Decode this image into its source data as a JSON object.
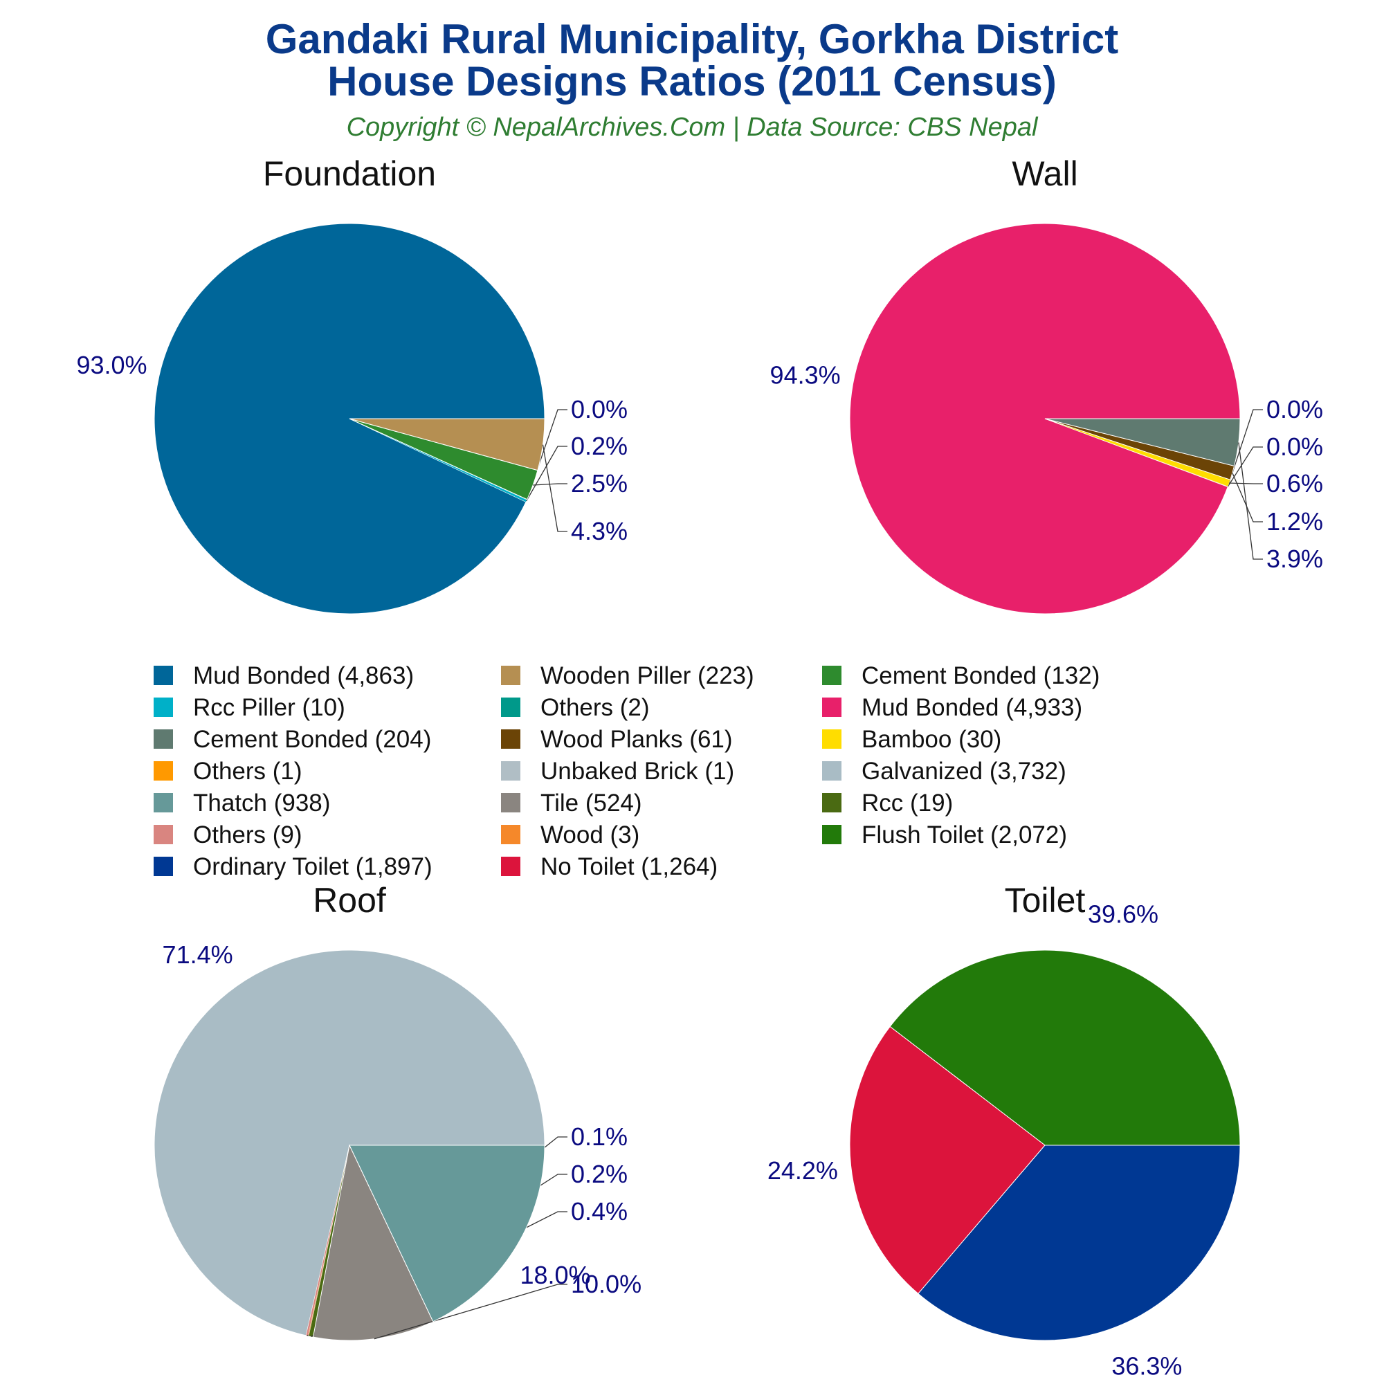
{
  "header": {
    "title_line1": "Gandaki Rural Municipality, Gorkha District",
    "title_line2": "House Designs Ratios (2011 Census)",
    "subtitle": "Copyright © NepalArchives.Com | Data Source: CBS Nepal"
  },
  "chart_data": [
    {
      "type": "pie",
      "title": "Foundation",
      "slices": [
        {
          "label": "Mud Bonded",
          "value": 4863,
          "percent_label": "93.0%",
          "color": "#006699"
        },
        {
          "label": "Rcc Piller",
          "value": 10,
          "percent_label": "0.2%",
          "color": "#00b0c8"
        },
        {
          "label": "Others",
          "value": 2,
          "percent_label": "0.0%",
          "color": "#00998a"
        },
        {
          "label": "Cement Bonded",
          "value": 132,
          "percent_label": "2.5%",
          "color": "#2e8b2e"
        },
        {
          "label": "Wooden Piller",
          "value": 223,
          "percent_label": "4.3%",
          "color": "#b58f52"
        }
      ]
    },
    {
      "type": "pie",
      "title": "Wall",
      "slices": [
        {
          "label": "Mud Bonded",
          "value": 4933,
          "percent_label": "94.3%",
          "color": "#e8206a"
        },
        {
          "label": "Unbaked Brick",
          "value": 1,
          "percent_label": "0.0%",
          "color": "#b0bec5"
        },
        {
          "label": "Others",
          "value": 1,
          "percent_label": "0.0%",
          "color": "#ff9900"
        },
        {
          "label": "Bamboo",
          "value": 30,
          "percent_label": "0.6%",
          "color": "#ffdd00"
        },
        {
          "label": "Wood Planks",
          "value": 61,
          "percent_label": "1.2%",
          "color": "#6b4406"
        },
        {
          "label": "Cement Bonded",
          "value": 204,
          "percent_label": "3.9%",
          "color": "#5f7a70"
        }
      ]
    },
    {
      "type": "pie",
      "title": "Roof",
      "slices": [
        {
          "label": "Galvanized",
          "value": 3732,
          "percent_label": "71.4%",
          "color": "#a9bcc5"
        },
        {
          "label": "Others",
          "value": 9,
          "percent_label": "0.2%",
          "color": "#d98580"
        },
        {
          "label": "Wood",
          "value": 3,
          "percent_label": "0.1%",
          "color": "#f5882a"
        },
        {
          "label": "Rcc",
          "value": 19,
          "percent_label": "0.4%",
          "color": "#4a6a12"
        },
        {
          "label": "Tile",
          "value": 524,
          "percent_label": "10.0%",
          "color": "#8a8580"
        },
        {
          "label": "Thatch",
          "value": 938,
          "percent_label": "18.0%",
          "color": "#669999"
        }
      ]
    },
    {
      "type": "pie",
      "title": "Toilet",
      "slices": [
        {
          "label": "Flush Toilet",
          "value": 2072,
          "percent_label": "39.6%",
          "color": "#227a0a"
        },
        {
          "label": "No Toilet",
          "value": 1264,
          "percent_label": "24.2%",
          "color": "#dc143c"
        },
        {
          "label": "Ordinary Toilet",
          "value": 1897,
          "percent_label": "36.3%",
          "color": "#003893"
        }
      ]
    }
  ],
  "legend": {
    "columns": [
      [
        {
          "text": "Mud Bonded (4,863)",
          "color": "#006699"
        },
        {
          "text": "Rcc Piller (10)",
          "color": "#00b0c8"
        },
        {
          "text": "Cement Bonded (204)",
          "color": "#5f7a70"
        },
        {
          "text": "Others (1)",
          "color": "#ff9900"
        },
        {
          "text": "Thatch (938)",
          "color": "#669999"
        },
        {
          "text": "Others (9)",
          "color": "#d98580"
        },
        {
          "text": "Ordinary Toilet (1,897)",
          "color": "#003893"
        }
      ],
      [
        {
          "text": "Wooden Piller (223)",
          "color": "#b58f52"
        },
        {
          "text": "Others (2)",
          "color": "#00998a"
        },
        {
          "text": "Wood Planks (61)",
          "color": "#6b4406"
        },
        {
          "text": "Unbaked Brick (1)",
          "color": "#b0bec5"
        },
        {
          "text": "Tile (524)",
          "color": "#8a8580"
        },
        {
          "text": "Wood (3)",
          "color": "#f5882a"
        },
        {
          "text": "No Toilet (1,264)",
          "color": "#dc143c"
        }
      ],
      [
        {
          "text": "Cement Bonded (132)",
          "color": "#2e8b2e"
        },
        {
          "text": "Mud Bonded (4,933)",
          "color": "#e8206a"
        },
        {
          "text": "Bamboo (30)",
          "color": "#ffdd00"
        },
        {
          "text": "Galvanized (3,732)",
          "color": "#a9bcc5"
        },
        {
          "text": "Rcc (19)",
          "color": "#4a6a12"
        },
        {
          "text": "Flush Toilet (2,072)",
          "color": "#227a0a"
        }
      ]
    ]
  }
}
